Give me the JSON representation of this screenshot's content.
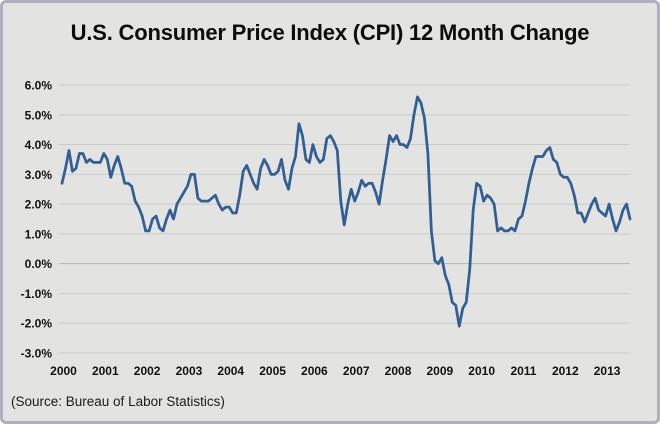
{
  "title": "U.S. Consumer Price Index (CPI) 12 Month Change",
  "source_note": "(Source: Bureau of Labor Statistics)",
  "colors": {
    "line": "#315f94",
    "background": "#e3e3e2",
    "grid": "#cbcbcb",
    "zero_line": "#b7b7b7",
    "frame_border": "#afafc0",
    "text": "#111111"
  },
  "chart_data": {
    "type": "line",
    "title": "U.S. Consumer Price Index (CPI) 12 Month Change",
    "xlabel": "",
    "ylabel": "",
    "x_tick_labels": [
      "2000",
      "2001",
      "2002",
      "2003",
      "2004",
      "2005",
      "2006",
      "2007",
      "2008",
      "2009",
      "2010",
      "2011",
      "2012",
      "2013"
    ],
    "y_tick_labels": [
      "6.0%",
      "5.0%",
      "4.0%",
      "3.0%",
      "2.0%",
      "1.0%",
      "0.0%",
      "-1.0%",
      "-2.0%",
      "-3.0%"
    ],
    "y_tick_values": [
      6,
      5,
      4,
      3,
      2,
      1,
      0,
      -1,
      -2,
      -3
    ],
    "ylim": [
      -3.0,
      6.0
    ],
    "grid": "horizontal",
    "legend": "none",
    "frequency": "monthly",
    "x_start": "2000-01",
    "x_end": "2013-08",
    "series": [
      {
        "name": "CPI 12-month percent change",
        "values": [
          2.7,
          3.2,
          3.8,
          3.1,
          3.2,
          3.7,
          3.7,
          3.4,
          3.5,
          3.4,
          3.4,
          3.4,
          3.7,
          3.5,
          2.9,
          3.3,
          3.6,
          3.2,
          2.7,
          2.7,
          2.6,
          2.1,
          1.9,
          1.6,
          1.1,
          1.1,
          1.5,
          1.6,
          1.2,
          1.1,
          1.5,
          1.8,
          1.5,
          2.0,
          2.2,
          2.4,
          2.6,
          3.0,
          3.0,
          2.2,
          2.1,
          2.1,
          2.1,
          2.2,
          2.3,
          2.0,
          1.8,
          1.9,
          1.9,
          1.7,
          1.7,
          2.3,
          3.1,
          3.3,
          3.0,
          2.7,
          2.5,
          3.2,
          3.5,
          3.3,
          3.0,
          3.0,
          3.1,
          3.5,
          2.8,
          2.5,
          3.2,
          3.6,
          4.7,
          4.3,
          3.5,
          3.4,
          4.0,
          3.6,
          3.4,
          3.5,
          4.2,
          4.3,
          4.1,
          3.8,
          2.1,
          1.3,
          2.0,
          2.5,
          2.1,
          2.4,
          2.8,
          2.6,
          2.7,
          2.7,
          2.4,
          2.0,
          2.8,
          3.5,
          4.3,
          4.1,
          4.3,
          4.0,
          4.0,
          3.9,
          4.2,
          5.0,
          5.6,
          5.4,
          4.9,
          3.7,
          1.1,
          0.1,
          0.0,
          0.2,
          -0.4,
          -0.7,
          -1.3,
          -1.4,
          -2.1,
          -1.5,
          -1.3,
          -0.2,
          1.8,
          2.7,
          2.6,
          2.1,
          2.3,
          2.2,
          2.0,
          1.1,
          1.2,
          1.1,
          1.1,
          1.2,
          1.1,
          1.5,
          1.6,
          2.1,
          2.7,
          3.2,
          3.6,
          3.6,
          3.6,
          3.8,
          3.9,
          3.5,
          3.4,
          3.0,
          2.9,
          2.9,
          2.7,
          2.3,
          1.7,
          1.7,
          1.4,
          1.7,
          2.0,
          2.2,
          1.8,
          1.7,
          1.6,
          2.0,
          1.5,
          1.1,
          1.4,
          1.8,
          2.0,
          1.5
        ]
      }
    ]
  }
}
